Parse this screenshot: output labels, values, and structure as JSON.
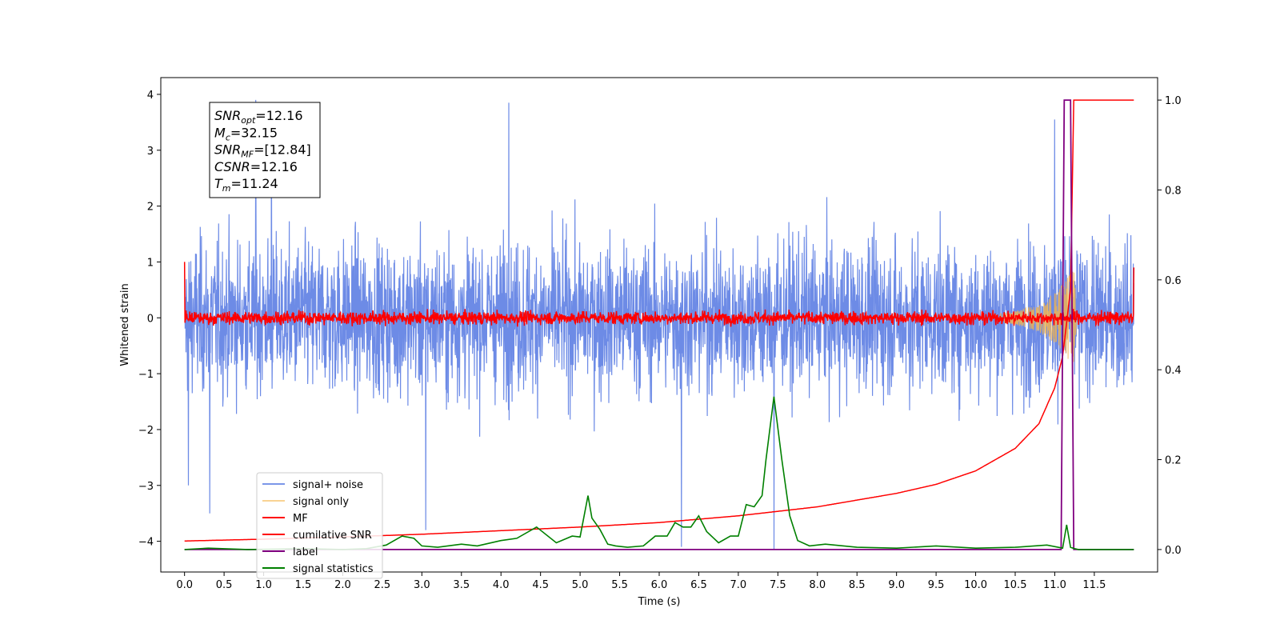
{
  "chart_data": {
    "type": "line",
    "xlabel": "Time (s)",
    "ylabel": "Whitened strain",
    "xlim": [
      -0.3,
      12.3
    ],
    "ylim": [
      -4.55,
      4.3
    ],
    "y2lim": [
      -0.05,
      1.05
    ],
    "x_ticks": [
      "0.0",
      "0.5",
      "1.0",
      "1.5",
      "2.0",
      "2.5",
      "3.0",
      "3.5",
      "4.0",
      "4.5",
      "5.0",
      "5.5",
      "6.0",
      "6.5",
      "7.0",
      "7.5",
      "8.0",
      "8.5",
      "9.0",
      "9.5",
      "10.0",
      "10.5",
      "11.0",
      "11.5"
    ],
    "y_ticks": [
      "−4",
      "−3",
      "−2",
      "−1",
      "0",
      "1",
      "2",
      "3",
      "4"
    ],
    "y2_ticks": [
      "0.0",
      "0.2",
      "0.4",
      "0.6",
      "0.8",
      "1.0"
    ],
    "legend_position": "lower-left",
    "annotation_box": {
      "lines": [
        {
          "base": "SNR",
          "sub": "opt",
          "value": "=12.16"
        },
        {
          "base": "M",
          "sub": "c",
          "value": "=32.15"
        },
        {
          "base": "SNR",
          "sub": "MF",
          "value": "=[12.84]"
        },
        {
          "base": "CSNR",
          "sub": "",
          "value": "=12.16"
        },
        {
          "base": "T",
          "sub": "m",
          "value": "=11.24"
        }
      ]
    },
    "colors": {
      "signal_noise": "#6d8be6",
      "signal_only": "#f5b54b",
      "mf": "#ff0000",
      "cumulative": "#ff0000",
      "label": "#800080",
      "statistics": "#008000"
    },
    "series": [
      {
        "name": "signal+ noise",
        "description": "dense noise roughly ±2.2, peaks to ±3.9",
        "x_range": [
          0.0,
          12.0
        ],
        "envelope_y": [
          -2.2,
          2.3
        ],
        "spikes": [
          [
            0.9,
            3.9
          ],
          [
            4.1,
            3.85
          ],
          [
            1.1,
            3.65
          ],
          [
            3.05,
            -3.8
          ],
          [
            0.32,
            -3.5
          ],
          [
            7.45,
            -4.15
          ],
          [
            6.28,
            -4.1
          ],
          [
            11.0,
            3.55
          ],
          [
            0.05,
            -3.0
          ]
        ]
      },
      {
        "name": "signal only",
        "description": "chirp growing toward merger near 11.24 s",
        "x": [
          10.2,
          10.5,
          10.8,
          11.0,
          11.1,
          11.2,
          11.24,
          11.28
        ],
        "amplitude": [
          0.05,
          0.12,
          0.25,
          0.45,
          0.6,
          0.8,
          0.9,
          0.0
        ]
      },
      {
        "name": "MF",
        "description": "matched filter output ~±0.15 around 0",
        "x_range": [
          0.0,
          12.0
        ],
        "amplitude": 0.15,
        "start_y": 1.0,
        "end_y": 0.9
      },
      {
        "name": "cumilative SNR",
        "axis": "right",
        "x": [
          0.0,
          1.0,
          2.0,
          3.0,
          4.0,
          5.0,
          6.0,
          7.0,
          8.0,
          9.0,
          9.5,
          10.0,
          10.5,
          10.8,
          11.0,
          11.1,
          11.2,
          11.24,
          12.0
        ],
        "values": [
          0.019,
          0.023,
          0.028,
          0.034,
          0.042,
          0.05,
          0.06,
          0.075,
          0.095,
          0.125,
          0.145,
          0.175,
          0.225,
          0.28,
          0.36,
          0.43,
          0.58,
          1.0,
          1.0
        ]
      },
      {
        "name": "label",
        "axis": "right",
        "x": [
          0.0,
          11.08,
          11.12,
          11.2,
          11.24,
          12.0
        ],
        "values": [
          0.0,
          0.0,
          1.0,
          1.0,
          0.0,
          0.0
        ]
      },
      {
        "name": "signal statistics",
        "axis": "right",
        "x": [
          0.0,
          0.3,
          0.8,
          1.5,
          2.0,
          2.3,
          2.55,
          2.75,
          2.9,
          3.0,
          3.2,
          3.5,
          3.7,
          4.0,
          4.2,
          4.45,
          4.7,
          4.9,
          5.0,
          5.1,
          5.15,
          5.25,
          5.35,
          5.45,
          5.6,
          5.8,
          5.95,
          6.1,
          6.2,
          6.3,
          6.4,
          6.5,
          6.6,
          6.75,
          6.9,
          7.0,
          7.1,
          7.2,
          7.3,
          7.35,
          7.45,
          7.55,
          7.65,
          7.75,
          7.9,
          8.1,
          8.5,
          9.0,
          9.5,
          10.0,
          10.5,
          10.9,
          11.1,
          11.15,
          11.2,
          11.25,
          11.3,
          12.0
        ],
        "values": [
          0.0,
          0.003,
          0.0,
          0.002,
          0.0,
          0.002,
          0.01,
          0.03,
          0.025,
          0.008,
          0.005,
          0.012,
          0.008,
          0.02,
          0.025,
          0.05,
          0.015,
          0.03,
          0.028,
          0.12,
          0.07,
          0.045,
          0.012,
          0.008,
          0.005,
          0.008,
          0.03,
          0.03,
          0.06,
          0.05,
          0.05,
          0.075,
          0.04,
          0.015,
          0.03,
          0.03,
          0.1,
          0.095,
          0.12,
          0.2,
          0.34,
          0.2,
          0.075,
          0.02,
          0.008,
          0.012,
          0.005,
          0.003,
          0.008,
          0.003,
          0.005,
          0.01,
          0.003,
          0.055,
          0.005,
          0.002,
          0.0,
          0.0
        ]
      }
    ]
  }
}
